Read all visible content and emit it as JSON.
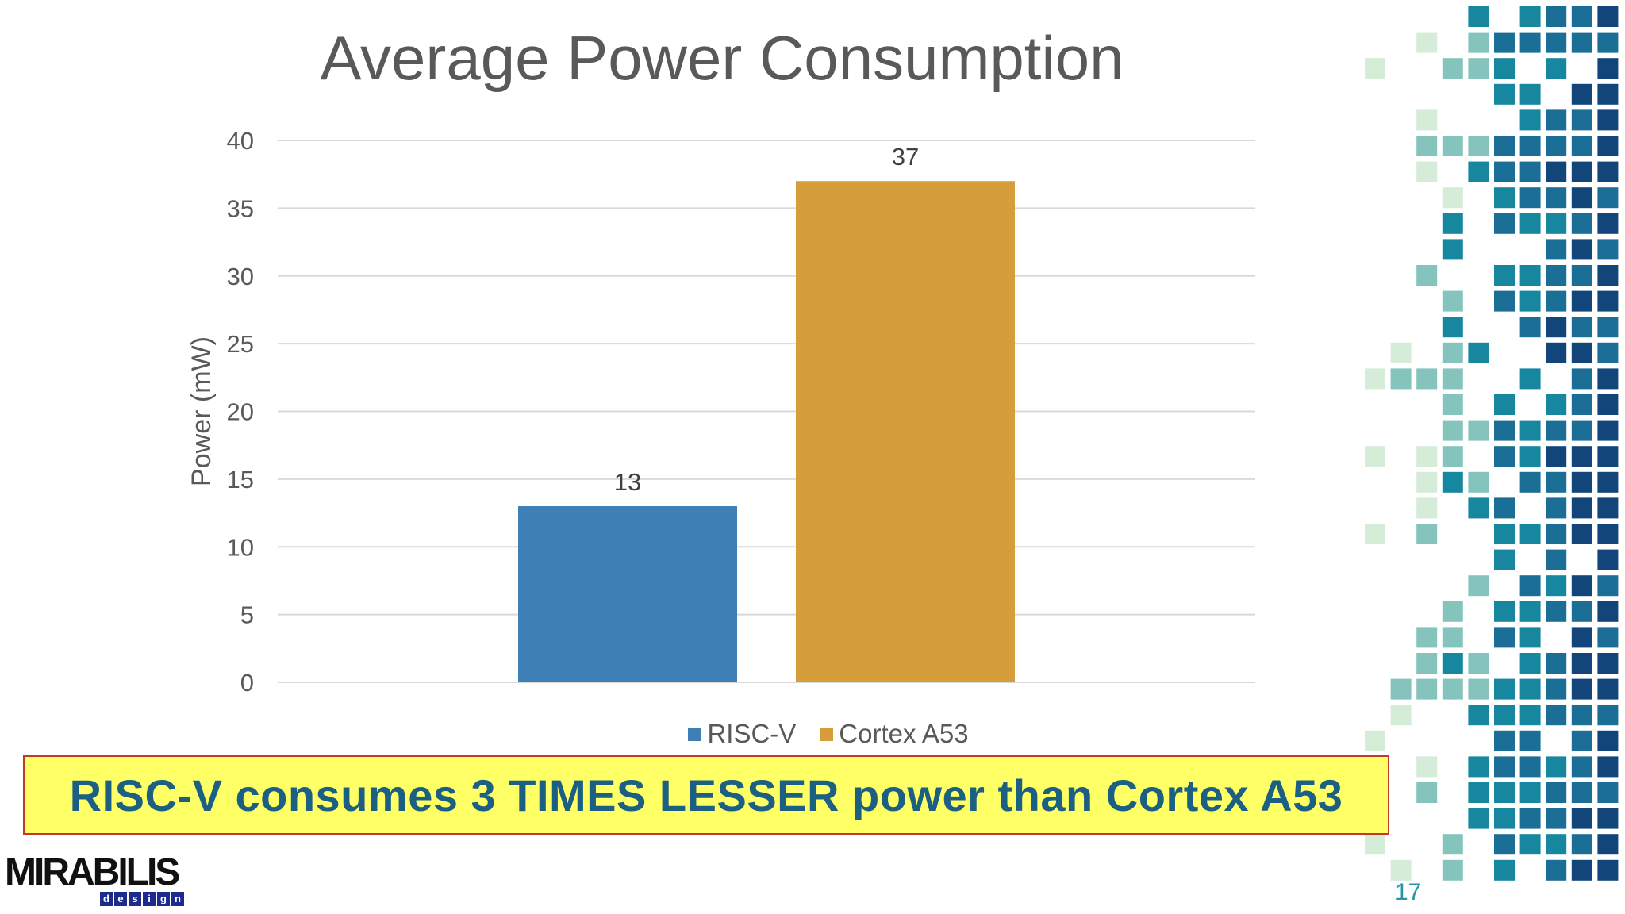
{
  "chart_data": {
    "type": "bar",
    "title": "Average Power Consumption",
    "ylabel": "Power (mW)",
    "xlabel": "",
    "ylim": [
      0,
      40
    ],
    "yticks": [
      0,
      5,
      10,
      15,
      20,
      25,
      30,
      35,
      40
    ],
    "grid": true,
    "legend_position": "bottom",
    "series": [
      {
        "name": "RISC-V",
        "values": [
          13
        ],
        "color": "#3e7fb5"
      },
      {
        "name": "Cortex A53",
        "values": [
          37
        ],
        "color": "#d59e3b"
      }
    ]
  },
  "banner": {
    "text": "RISC-V consumes 3 TIMES LESSER power than Cortex A53"
  },
  "logo": {
    "word": "MIRABILIS",
    "sub": [
      "d",
      "e",
      "s",
      "i",
      "g",
      "n"
    ]
  },
  "slide_number": "17",
  "decor": {
    "mosaic_colors": [
      "#d5ecd9",
      "#85c4bd",
      "#16879e",
      "#1b6f96",
      "#12467a"
    ]
  }
}
